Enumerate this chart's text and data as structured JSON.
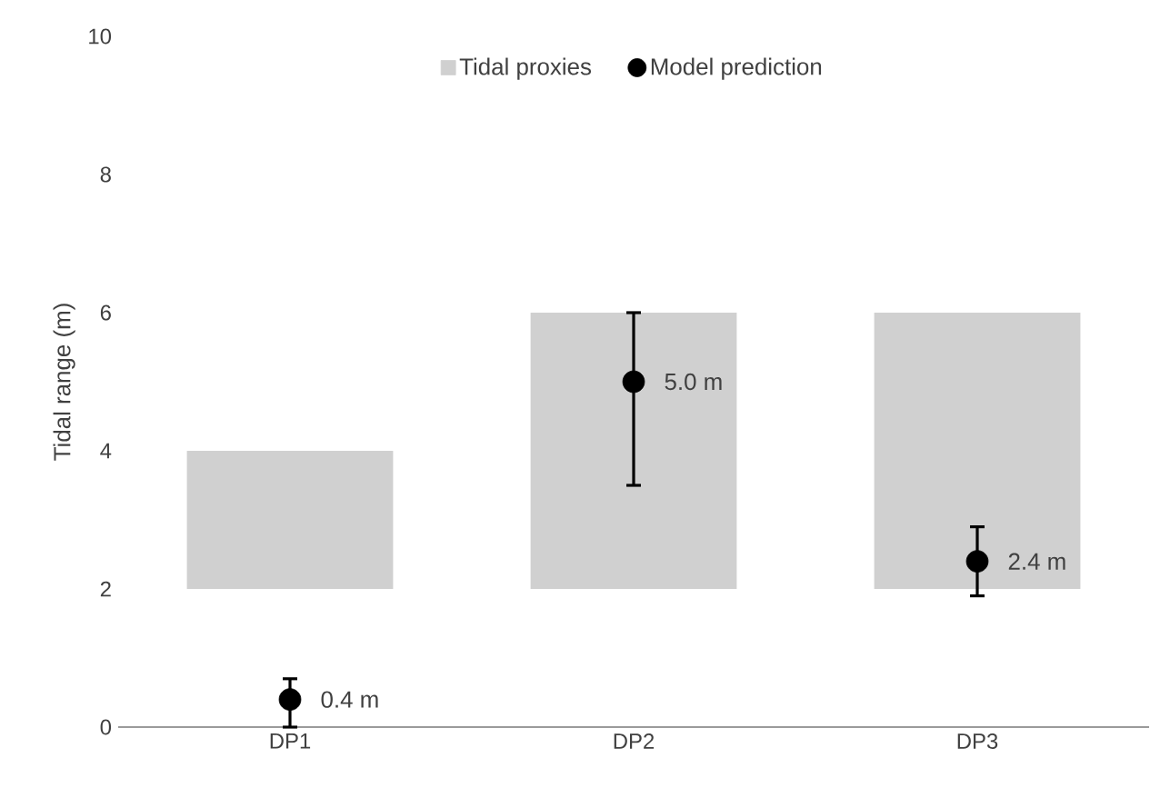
{
  "chart_data": {
    "type": "bar",
    "ylabel": "Tidal range (m)",
    "categories": [
      "DP1",
      "DP2",
      "DP3"
    ],
    "series": [
      {
        "name": "Tidal proxies",
        "color": "#d0d0d0",
        "base": [
          2,
          2,
          2
        ],
        "values": [
          2,
          4,
          4
        ]
      },
      {
        "name": "Model prediction",
        "type": "scatter",
        "marker": "circle",
        "color": "#000000",
        "values": [
          0.4,
          5.0,
          2.4
        ],
        "errors": [
          [
            0,
            0.7
          ],
          [
            3.5,
            6.0
          ],
          [
            1.9,
            2.9
          ]
        ],
        "value_labels": [
          "0.4 m",
          "5.0 m",
          "2.4 m"
        ]
      }
    ],
    "ylim": [
      0,
      10
    ],
    "yticks": [
      0,
      2,
      4,
      6,
      8,
      10
    ],
    "legend": "top"
  }
}
